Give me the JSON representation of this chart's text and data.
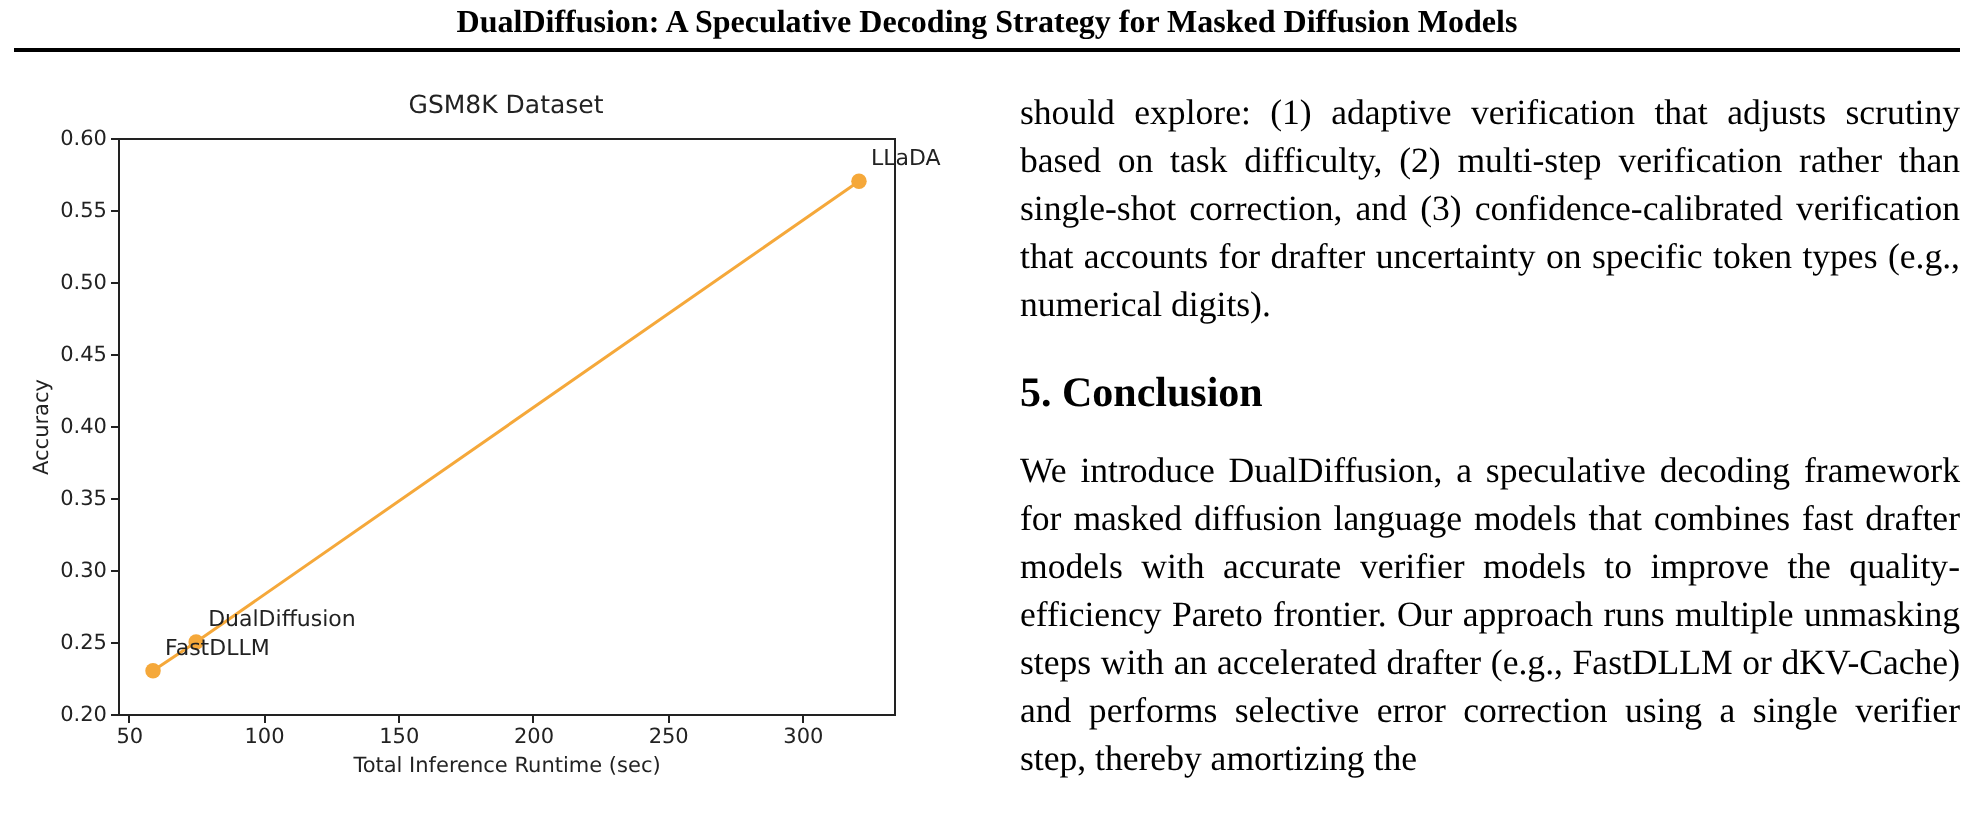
{
  "chart_data": {
    "type": "line",
    "title": "GSM8K Dataset",
    "xlabel": "Total Inference Runtime (sec)",
    "ylabel": "Accuracy",
    "x": [
      59,
      75,
      321
    ],
    "series": [
      {
        "color": "#f5a83a",
        "values": [
          0.23,
          0.25,
          0.57
        ]
      }
    ],
    "xlim": [
      46,
      334
    ],
    "ylim": [
      0.2,
      0.6
    ],
    "xticks": [
      50,
      100,
      150,
      200,
      250,
      300
    ],
    "yticks": [
      {
        "value": 0.2,
        "label": "0.20"
      },
      {
        "value": 0.25,
        "label": "0.25"
      },
      {
        "value": 0.3,
        "label": "0.30"
      },
      {
        "value": 0.35,
        "label": "0.35"
      },
      {
        "value": 0.4,
        "label": "0.40"
      },
      {
        "value": 0.45,
        "label": "0.45"
      },
      {
        "value": 0.5,
        "label": "0.50"
      },
      {
        "value": 0.55,
        "label": "0.55"
      },
      {
        "value": 0.6,
        "label": "0.60"
      }
    ],
    "marker": "circle",
    "line_style": "solid",
    "annotations": [
      {
        "text": "FastDLLM",
        "x": 59,
        "y": 0.23
      },
      {
        "text": "DualDiffusion",
        "x": 75,
        "y": 0.25
      },
      {
        "text": "LLaDA",
        "x": 321,
        "y": 0.57
      },
      "DualDiffusion: A Speculative Decoding Strategy for Masked Diffusion Models",
      "should explore: (1) adaptive verification that adjusts scrutiny based on task difficulty, (2) multi-step verification rather than single-shot correction, and (3) confidence-calibrated verification that accounts for drafter uncertainty on specific token types (e.g., numerical digits).",
      "5. Conclusion",
      "We introduce DualDiffusion, a speculative decoding framework for masked diffusion language models that combines fast drafter models with accurate verifier models to improve the quality-efficiency Pareto frontier. Our approach runs multiple unmasking steps with an accelerated drafter (e.g., FastDLLM or dKV-Cache) and performs selective error correction using a single verifier step, thereby amortizing the"
    ]
  }
}
